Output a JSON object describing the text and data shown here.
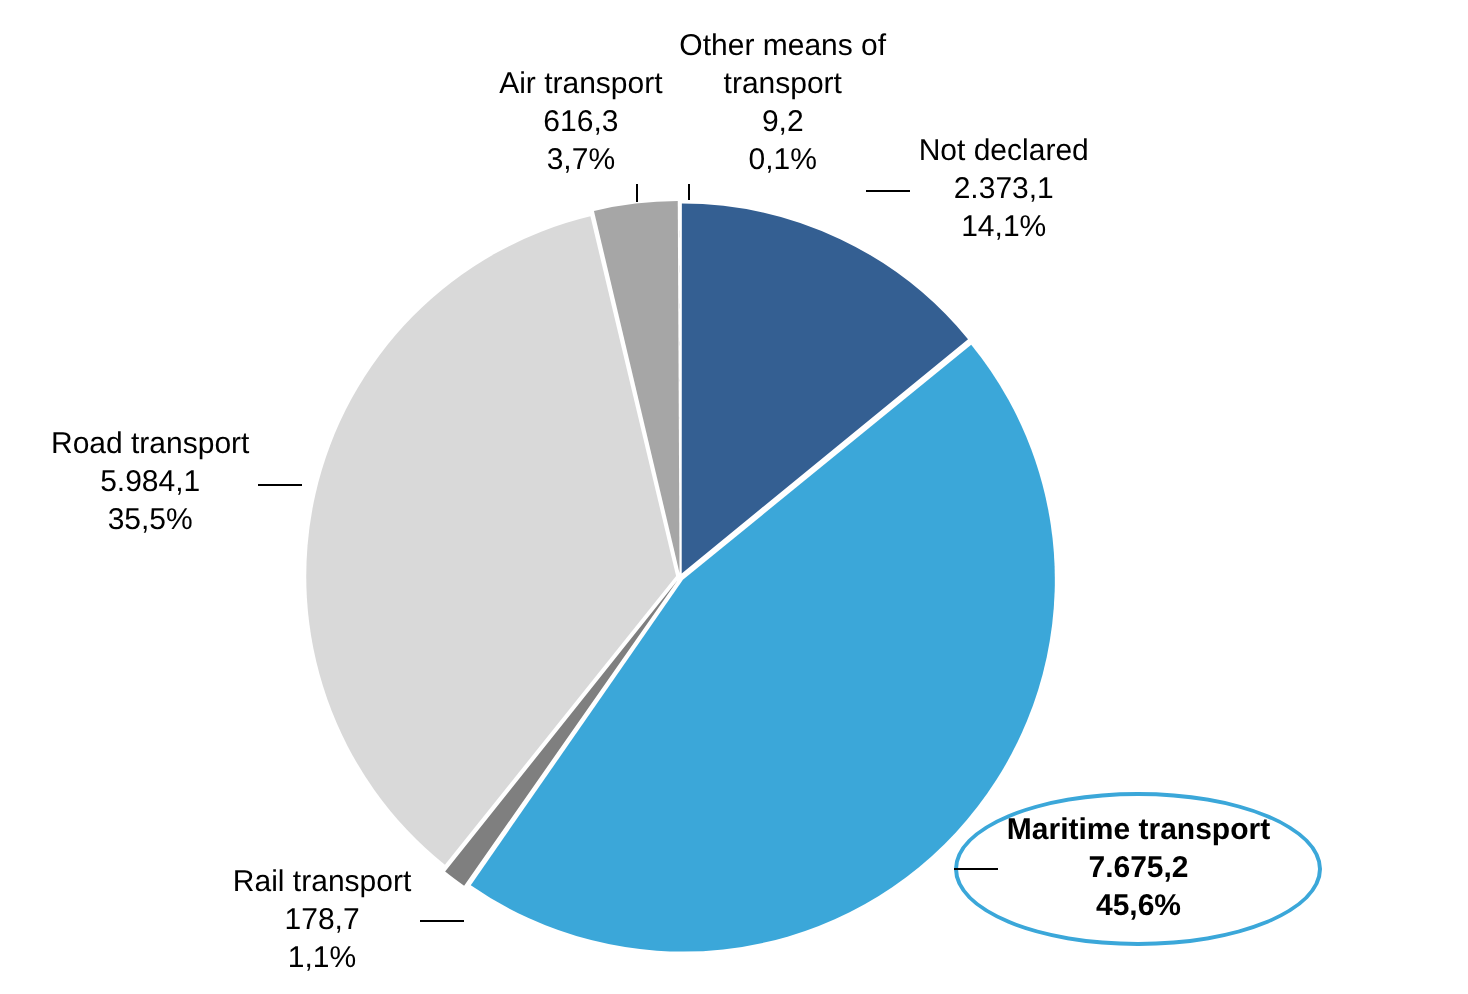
{
  "chart_data": {
    "type": "pie",
    "categories": [
      "Not declared",
      "Maritime transport",
      "Rail transport",
      "Road transport",
      "Air transport",
      "Other means of transport"
    ],
    "values": [
      2373.1,
      7675.2,
      178.7,
      5984.1,
      616.3,
      9.2
    ],
    "value_labels": [
      "2.373,1\n14,1%",
      "7.675,2\n45,6%",
      "178,7\n1,1%",
      "5.984,1\n35,5%",
      "616,3\n3,7%",
      "9,2\n0,1%"
    ],
    "colors": [
      "#345f92",
      "#3ba7d9",
      "#7f7f7f",
      "#d9d9d9",
      "#a6a6a6",
      "#4a4a4a"
    ],
    "legend": false
  }
}
